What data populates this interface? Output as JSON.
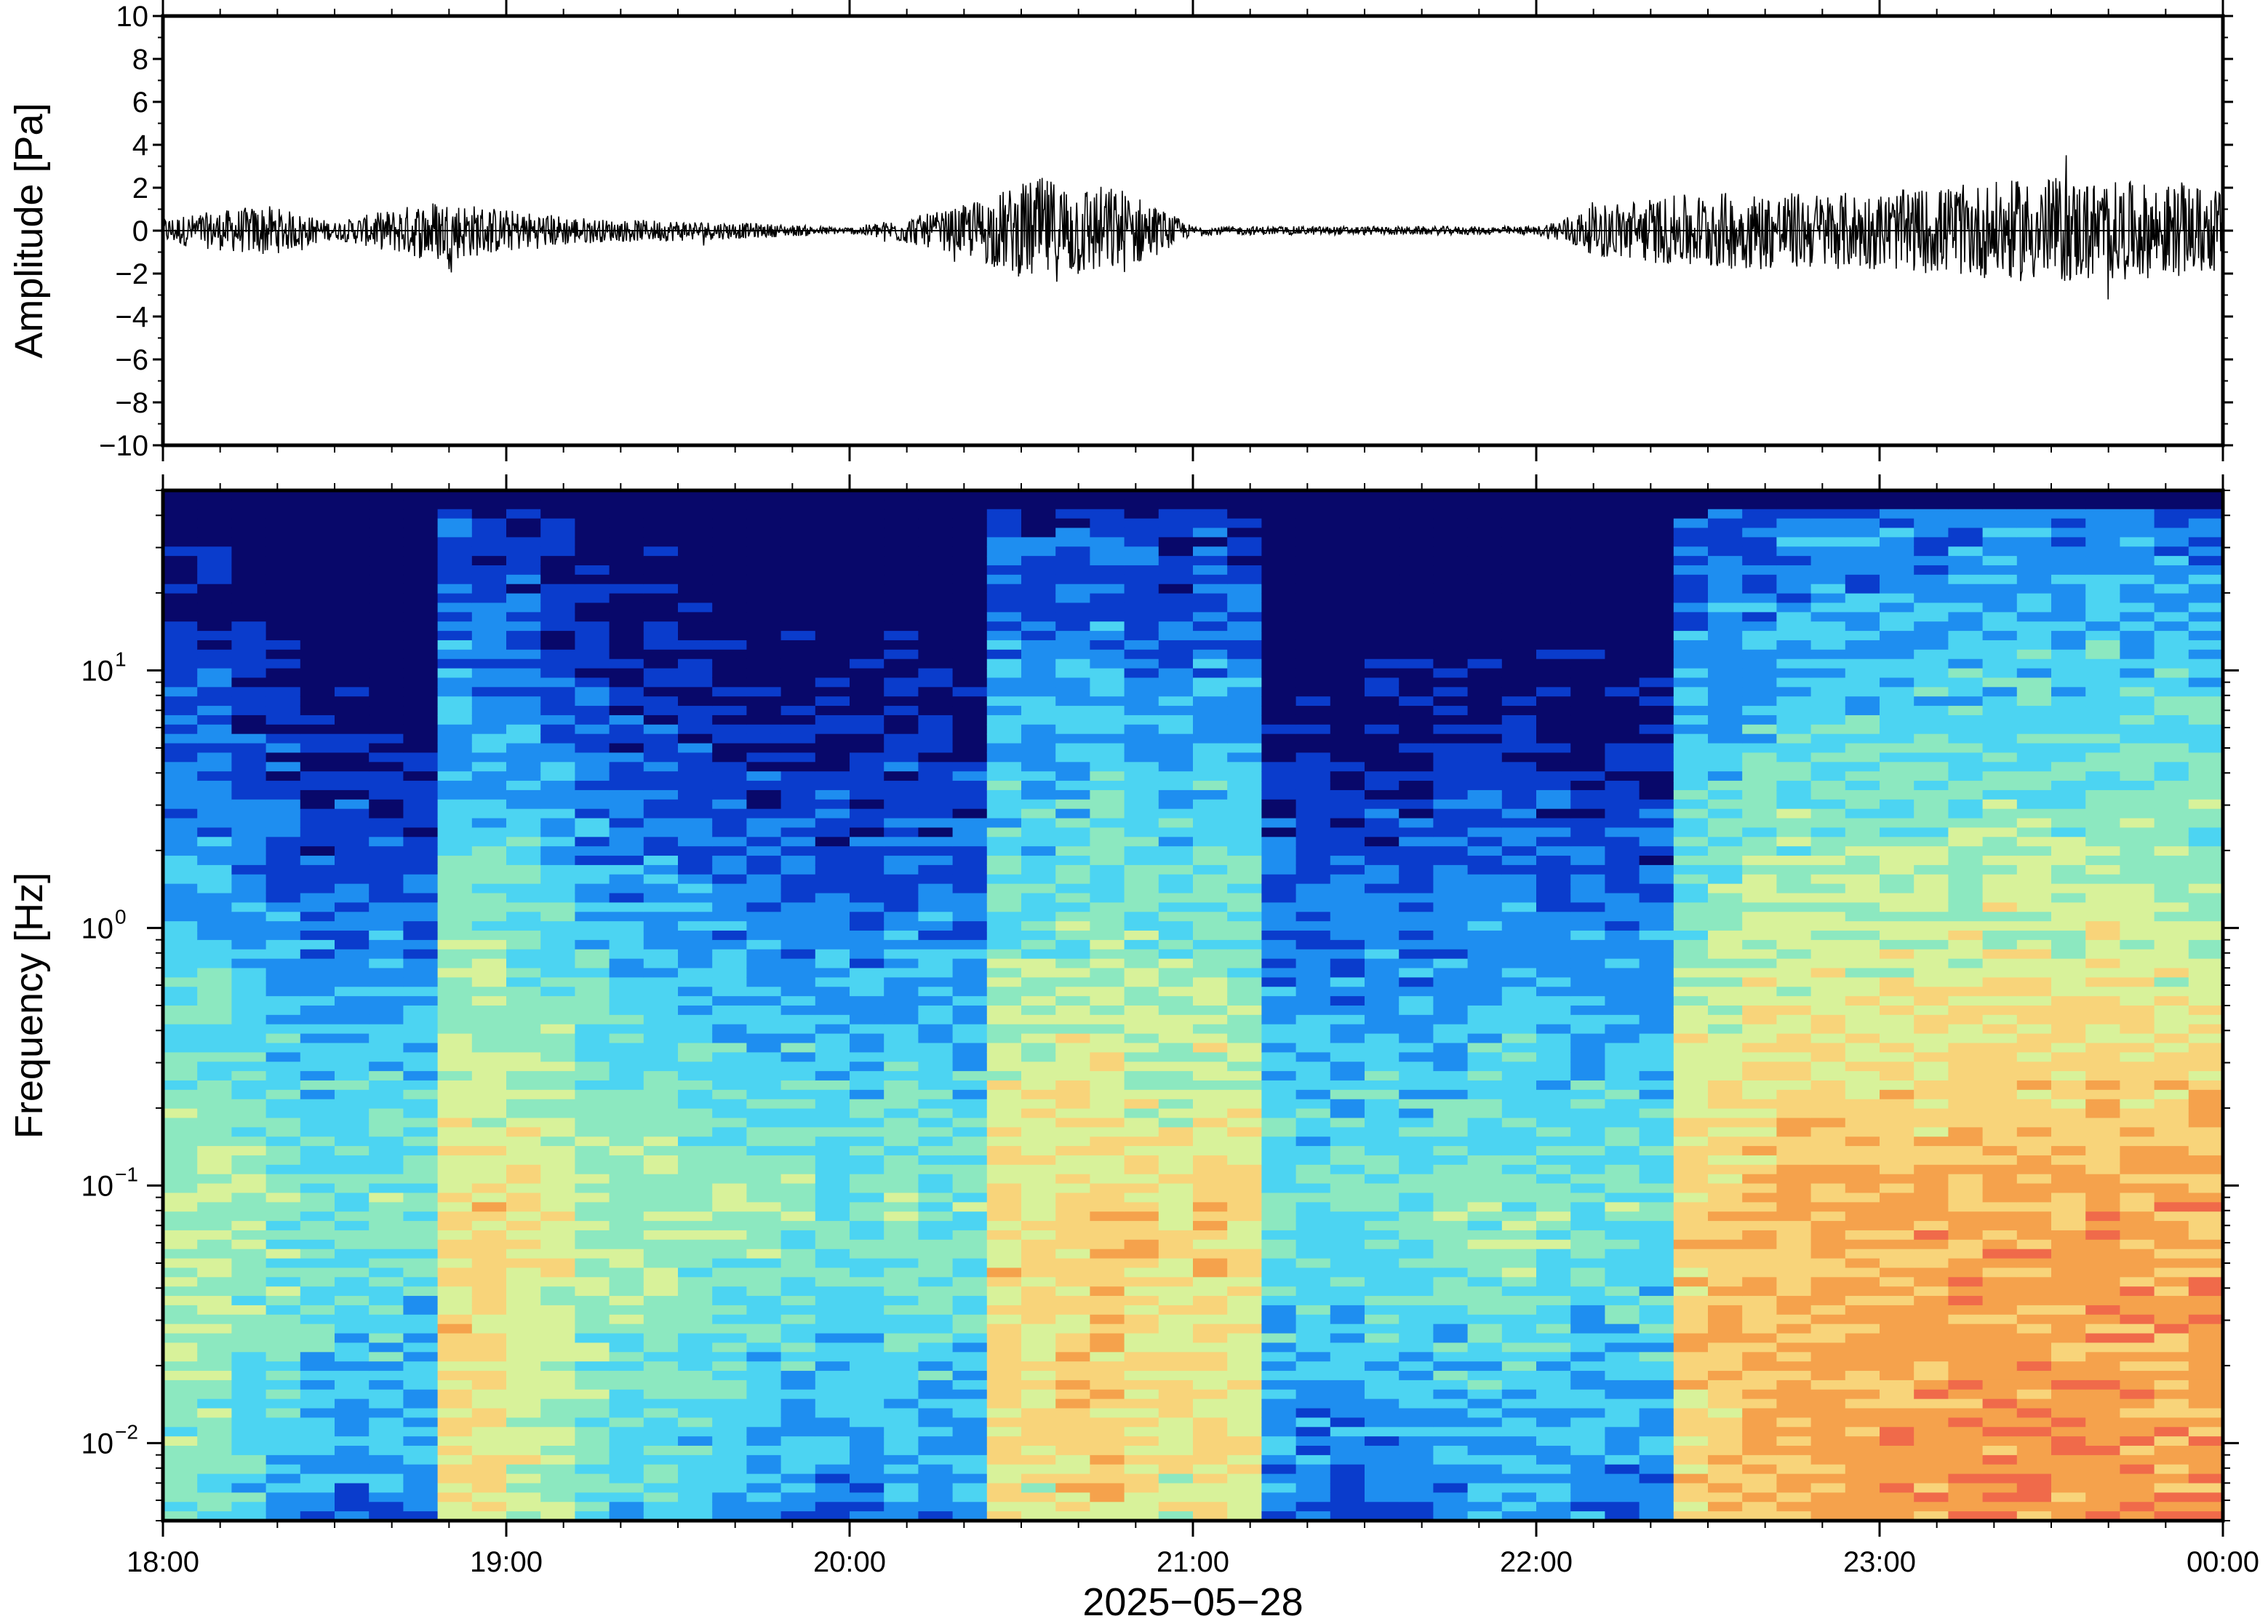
{
  "chart_data": [
    {
      "type": "line",
      "panel": "waveform",
      "ylabel": "Amplitude [Pa]",
      "ylim": [
        -10,
        10
      ],
      "yticks": [
        10,
        8,
        6,
        4,
        2,
        0,
        -2,
        -4,
        -6,
        -8,
        -10
      ],
      "ytick_labels": [
        "10",
        "8",
        "6",
        "4",
        "2",
        "0",
        "−2",
        "−4",
        "−6",
        "−8",
        "−10"
      ],
      "x_range_hours": [
        18,
        24
      ],
      "series": [
        {
          "x_hours": [
            18.0,
            18.3,
            18.5,
            18.8,
            19.0,
            19.3,
            19.5,
            20.0,
            20.3,
            20.55,
            20.8,
            21.0,
            22.0,
            22.2,
            22.5,
            23.0,
            23.5,
            24.0
          ],
          "envelope_pa": [
            0.6,
            1.2,
            0.4,
            1.5,
            1.0,
            0.5,
            0.5,
            0.15,
            1.0,
            2.5,
            2.0,
            0.2,
            0.2,
            1.3,
            1.8,
            1.8,
            2.5,
            2.0
          ]
        }
      ],
      "color": "#000000"
    },
    {
      "type": "heatmap",
      "panel": "spectrogram",
      "ylabel": "Frequency [Hz]",
      "yscale": "log",
      "ylim": [
        0.005,
        50
      ],
      "yticks": [
        0.01,
        0.1,
        1,
        10
      ],
      "ytick_labels": [
        {
          "base": "10",
          "exp": "−2"
        },
        {
          "base": "10",
          "exp": "−1"
        },
        {
          "base": "10",
          "exp": "0"
        },
        {
          "base": "10",
          "exp": "1"
        }
      ],
      "x_range_hours": [
        18,
        24
      ],
      "xticks_hours": [
        18,
        19,
        20,
        21,
        22,
        23,
        24
      ],
      "xtick_labels": [
        "18:00",
        "19:00",
        "20:00",
        "21:00",
        "22:00",
        "23:00",
        "00:00"
      ],
      "xlabel": "2025−05−28",
      "colormap": "jet-like",
      "colors": [
        "#08086a",
        "#0a3ccc",
        "#1e8ef0",
        "#4cd4f2",
        "#8ce8c0",
        "#d8f29a",
        "#f8d47a",
        "#f5a24c",
        "#f06a4a",
        "#e84a4a"
      ],
      "column_activity": [
        0.3,
        0.28,
        0.22,
        0.18,
        0.12,
        0.1,
        0.12,
        0.1,
        0.52,
        0.48,
        0.42,
        0.38,
        0.28,
        0.22,
        0.24,
        0.2,
        0.16,
        0.14,
        0.14,
        0.1,
        0.12,
        0.16,
        0.14,
        0.12,
        0.5,
        0.46,
        0.52,
        0.54,
        0.48,
        0.44,
        0.5,
        0.46,
        0.1,
        0.08,
        0.08,
        0.1,
        0.1,
        0.12,
        0.16,
        0.18,
        0.14,
        0.12,
        0.1,
        0.1,
        0.52,
        0.56,
        0.6,
        0.62,
        0.64,
        0.62,
        0.66,
        0.64,
        0.66,
        0.68,
        0.66,
        0.64,
        0.68,
        0.66,
        0.64,
        0.66
      ]
    }
  ]
}
